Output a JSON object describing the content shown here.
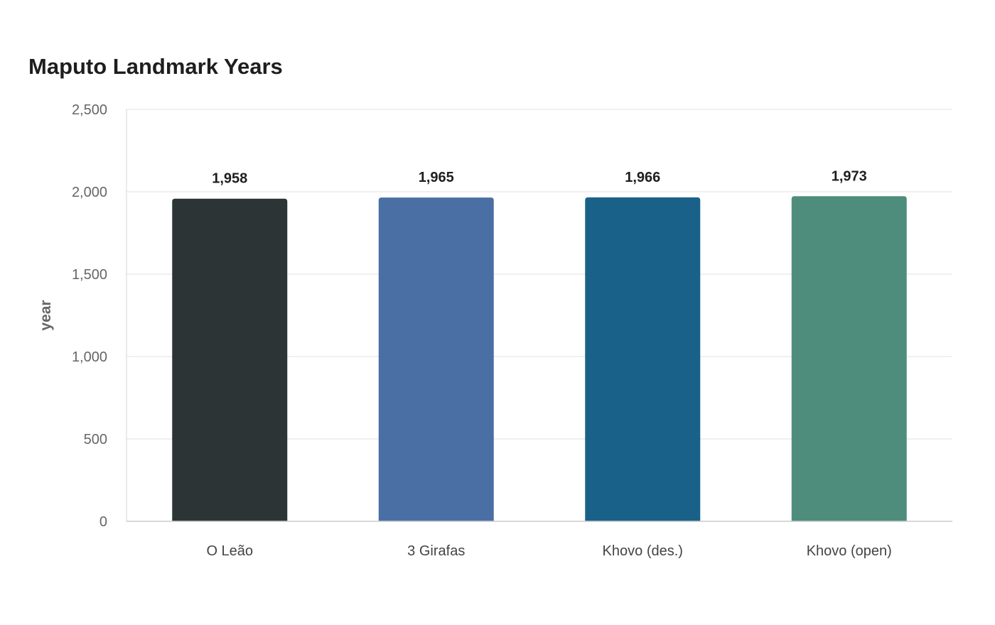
{
  "chart_data": {
    "type": "bar",
    "title": "Maputo Landmark Years",
    "xlabel": "",
    "ylabel": "year",
    "categories": [
      "O Leão",
      "3 Girafas",
      "Khovo (des.)",
      "Khovo (open)"
    ],
    "values": [
      1958,
      1965,
      1966,
      1973
    ],
    "value_labels": [
      "1,958",
      "1,965",
      "1,966",
      "1,973"
    ],
    "colors": [
      "#2d3436",
      "#4a6fa5",
      "#1a6189",
      "#4e8d7b"
    ],
    "ylim": [
      0,
      2500
    ],
    "yticks": [
      0,
      500,
      1000,
      1500,
      2000,
      2500
    ],
    "ytick_labels": [
      "0",
      "500",
      "1,000",
      "1,500",
      "2,000",
      "2,500"
    ],
    "grid": true,
    "legend": "none"
  }
}
